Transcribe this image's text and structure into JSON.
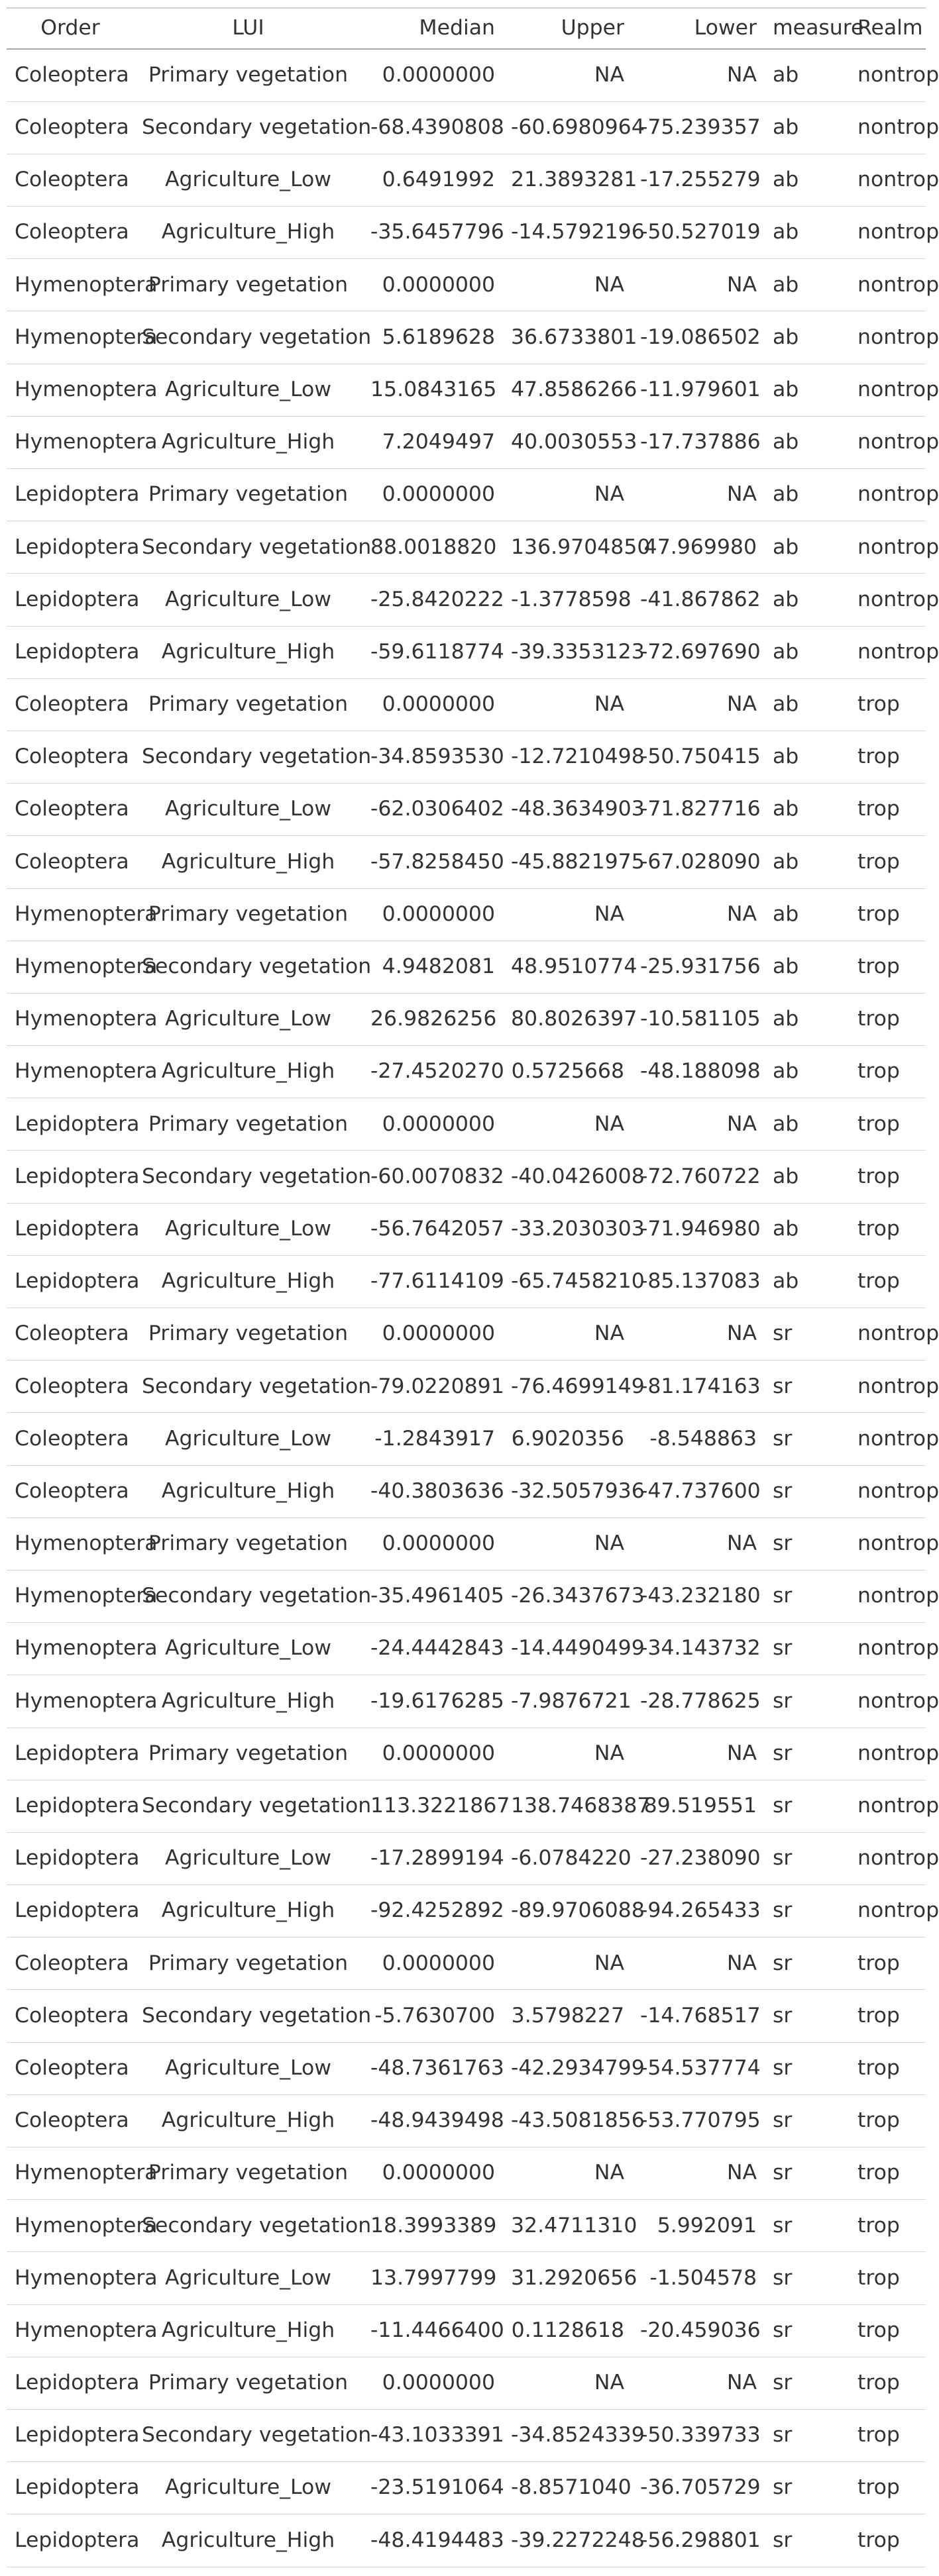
{
  "table": {
    "columns": [
      "Order",
      "LUI",
      "Median",
      "Upper",
      "Lower",
      "measure",
      "Realm"
    ],
    "rows": [
      [
        "Coleoptera",
        "Primary vegetation",
        "0.0000000",
        "NA",
        "NA",
        "ab",
        "nontrop"
      ],
      [
        "Coleoptera",
        "Secondary vegetation",
        "-68.4390808",
        "-60.6980964",
        "-75.239357",
        "ab",
        "nontrop"
      ],
      [
        "Coleoptera",
        "Agriculture_Low",
        "0.6491992",
        "21.3893281",
        "-17.255279",
        "ab",
        "nontrop"
      ],
      [
        "Coleoptera",
        "Agriculture_High",
        "-35.6457796",
        "-14.5792196",
        "-50.527019",
        "ab",
        "nontrop"
      ],
      [
        "Hymenoptera",
        "Primary vegetation",
        "0.0000000",
        "NA",
        "NA",
        "ab",
        "nontrop"
      ],
      [
        "Hymenoptera",
        "Secondary vegetation",
        "5.6189628",
        "36.6733801",
        "-19.086502",
        "ab",
        "nontrop"
      ],
      [
        "Hymenoptera",
        "Agriculture_Low",
        "15.0843165",
        "47.8586266",
        "-11.979601",
        "ab",
        "nontrop"
      ],
      [
        "Hymenoptera",
        "Agriculture_High",
        "7.2049497",
        "40.0030553",
        "-17.737886",
        "ab",
        "nontrop"
      ],
      [
        "Lepidoptera",
        "Primary vegetation",
        "0.0000000",
        "NA",
        "NA",
        "ab",
        "nontrop"
      ],
      [
        "Lepidoptera",
        "Secondary vegetation",
        "88.0018820",
        "136.9704850",
        "47.969980",
        "ab",
        "nontrop"
      ],
      [
        "Lepidoptera",
        "Agriculture_Low",
        "-25.8420222",
        "-1.3778598",
        "-41.867862",
        "ab",
        "nontrop"
      ],
      [
        "Lepidoptera",
        "Agriculture_High",
        "-59.6118774",
        "-39.3353123",
        "-72.697690",
        "ab",
        "nontrop"
      ],
      [
        "Coleoptera",
        "Primary vegetation",
        "0.0000000",
        "NA",
        "NA",
        "ab",
        "trop"
      ],
      [
        "Coleoptera",
        "Secondary vegetation",
        "-34.8593530",
        "-12.7210498",
        "-50.750415",
        "ab",
        "trop"
      ],
      [
        "Coleoptera",
        "Agriculture_Low",
        "-62.0306402",
        "-48.3634903",
        "-71.827716",
        "ab",
        "trop"
      ],
      [
        "Coleoptera",
        "Agriculture_High",
        "-57.8258450",
        "-45.8821975",
        "-67.028090",
        "ab",
        "trop"
      ],
      [
        "Hymenoptera",
        "Primary vegetation",
        "0.0000000",
        "NA",
        "NA",
        "ab",
        "trop"
      ],
      [
        "Hymenoptera",
        "Secondary vegetation",
        "4.9482081",
        "48.9510774",
        "-25.931756",
        "ab",
        "trop"
      ],
      [
        "Hymenoptera",
        "Agriculture_Low",
        "26.9826256",
        "80.8026397",
        "-10.581105",
        "ab",
        "trop"
      ],
      [
        "Hymenoptera",
        "Agriculture_High",
        "-27.4520270",
        "0.5725668",
        "-48.188098",
        "ab",
        "trop"
      ],
      [
        "Lepidoptera",
        "Primary vegetation",
        "0.0000000",
        "NA",
        "NA",
        "ab",
        "trop"
      ],
      [
        "Lepidoptera",
        "Secondary vegetation",
        "-60.0070832",
        "-40.0426008",
        "-72.760722",
        "ab",
        "trop"
      ],
      [
        "Lepidoptera",
        "Agriculture_Low",
        "-56.7642057",
        "-33.2030303",
        "-71.946980",
        "ab",
        "trop"
      ],
      [
        "Lepidoptera",
        "Agriculture_High",
        "-77.6114109",
        "-65.7458210",
        "-85.137083",
        "ab",
        "trop"
      ],
      [
        "Coleoptera",
        "Primary vegetation",
        "0.0000000",
        "NA",
        "NA",
        "sr",
        "nontrop"
      ],
      [
        "Coleoptera",
        "Secondary vegetation",
        "-79.0220891",
        "-76.4699149",
        "-81.174163",
        "sr",
        "nontrop"
      ],
      [
        "Coleoptera",
        "Agriculture_Low",
        "-1.2843917",
        "6.9020356",
        "-8.548863",
        "sr",
        "nontrop"
      ],
      [
        "Coleoptera",
        "Agriculture_High",
        "-40.3803636",
        "-32.5057936",
        "-47.737600",
        "sr",
        "nontrop"
      ],
      [
        "Hymenoptera",
        "Primary vegetation",
        "0.0000000",
        "NA",
        "NA",
        "sr",
        "nontrop"
      ],
      [
        "Hymenoptera",
        "Secondary vegetation",
        "-35.4961405",
        "-26.3437673",
        "-43.232180",
        "sr",
        "nontrop"
      ],
      [
        "Hymenoptera",
        "Agriculture_Low",
        "-24.4442843",
        "-14.4490499",
        "-34.143732",
        "sr",
        "nontrop"
      ],
      [
        "Hymenoptera",
        "Agriculture_High",
        "-19.6176285",
        "-7.9876721",
        "-28.778625",
        "sr",
        "nontrop"
      ],
      [
        "Lepidoptera",
        "Primary vegetation",
        "0.0000000",
        "NA",
        "NA",
        "sr",
        "nontrop"
      ],
      [
        "Lepidoptera",
        "Secondary vegetation",
        "113.3221867",
        "138.7468387",
        "89.519551",
        "sr",
        "nontrop"
      ],
      [
        "Lepidoptera",
        "Agriculture_Low",
        "-17.2899194",
        "-6.0784220",
        "-27.238090",
        "sr",
        "nontrop"
      ],
      [
        "Lepidoptera",
        "Agriculture_High",
        "-92.4252892",
        "-89.9706088",
        "-94.265433",
        "sr",
        "nontrop"
      ],
      [
        "Coleoptera",
        "Primary vegetation",
        "0.0000000",
        "NA",
        "NA",
        "sr",
        "trop"
      ],
      [
        "Coleoptera",
        "Secondary vegetation",
        "-5.7630700",
        "3.5798227",
        "-14.768517",
        "sr",
        "trop"
      ],
      [
        "Coleoptera",
        "Agriculture_Low",
        "-48.7361763",
        "-42.2934799",
        "-54.537774",
        "sr",
        "trop"
      ],
      [
        "Coleoptera",
        "Agriculture_High",
        "-48.9439498",
        "-43.5081856",
        "-53.770795",
        "sr",
        "trop"
      ],
      [
        "Hymenoptera",
        "Primary vegetation",
        "0.0000000",
        "NA",
        "NA",
        "sr",
        "trop"
      ],
      [
        "Hymenoptera",
        "Secondary vegetation",
        "18.3993389",
        "32.4711310",
        "5.992091",
        "sr",
        "trop"
      ],
      [
        "Hymenoptera",
        "Agriculture_Low",
        "13.7997799",
        "31.2920656",
        "-1.504578",
        "sr",
        "trop"
      ],
      [
        "Hymenoptera",
        "Agriculture_High",
        "-11.4466400",
        "0.1128618",
        "-20.459036",
        "sr",
        "trop"
      ],
      [
        "Lepidoptera",
        "Primary vegetation",
        "0.0000000",
        "NA",
        "NA",
        "sr",
        "trop"
      ],
      [
        "Lepidoptera",
        "Secondary vegetation",
        "-43.1033391",
        "-34.8524339",
        "-50.339733",
        "sr",
        "trop"
      ],
      [
        "Lepidoptera",
        "Agriculture_Low",
        "-23.5191064",
        "-8.8571040",
        "-36.705729",
        "sr",
        "trop"
      ],
      [
        "Lepidoptera",
        "Agriculture_High",
        "-48.4194483",
        "-39.2272248",
        "-56.298801",
        "sr",
        "trop"
      ]
    ]
  }
}
